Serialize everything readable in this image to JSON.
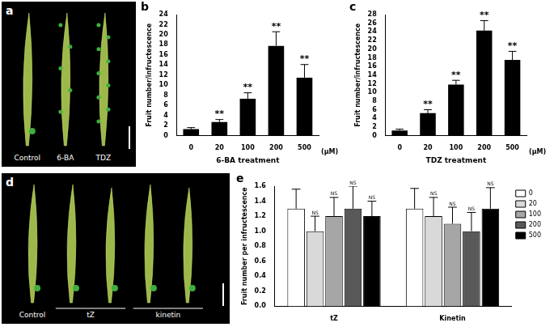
{
  "photos": [
    {
      "panel": "a",
      "labels": [
        "Control",
        "6-BA",
        "TDZ"
      ]
    },
    {
      "panel": "d",
      "labels": [
        "Control",
        "tZ",
        "kinetin"
      ]
    }
  ],
  "chart_data": [
    {
      "panel": "b",
      "type": "bar",
      "x_label": "6-BA treatment",
      "unit_label": "(μM)",
      "y_label": "Fruit number/infructescence",
      "categories": [
        "0",
        "20",
        "100",
        "200",
        "500"
      ],
      "values": [
        1.3,
        2.7,
        7.3,
        17.8,
        11.5
      ],
      "errors": [
        0.3,
        0.5,
        1.2,
        2.8,
        2.6
      ],
      "significance": [
        null,
        "**",
        "**",
        "**",
        "**"
      ],
      "color": "#000000",
      "ylim": [
        0,
        24
      ],
      "yticks": [
        0,
        2,
        4,
        6,
        8,
        10,
        12,
        14,
        16,
        18,
        20,
        22,
        24
      ],
      "grid": false
    },
    {
      "panel": "c",
      "type": "bar",
      "x_label": "TDZ treatment",
      "unit_label": "(μM)",
      "y_label": "Fruit number/infructescence",
      "categories": [
        "0",
        "20",
        "100",
        "200",
        "500"
      ],
      "values": [
        1.2,
        5.2,
        11.8,
        24.3,
        17.5
      ],
      "errors": [
        0.3,
        0.8,
        1.0,
        2.3,
        2.0
      ],
      "significance": [
        null,
        "**",
        "**",
        "**",
        "**"
      ],
      "color": "#000000",
      "ylim": [
        0,
        28
      ],
      "yticks": [
        0,
        2,
        4,
        6,
        8,
        10,
        12,
        14,
        16,
        18,
        20,
        22,
        24,
        26,
        28
      ],
      "grid": false
    },
    {
      "panel": "e",
      "type": "bar",
      "y_label": "Fruit number per infructescence",
      "categories": [
        "tZ",
        "Kinetin"
      ],
      "series": [
        {
          "name": "0",
          "color": "#ffffff",
          "values": [
            1.3,
            1.3
          ],
          "errors": [
            0.26,
            0.27
          ]
        },
        {
          "name": "20",
          "color": "#d9d9d9",
          "values": [
            1.0,
            1.2
          ],
          "errors": [
            0.2,
            0.25
          ],
          "significance": [
            "NS",
            "NS"
          ]
        },
        {
          "name": "100",
          "color": "#a6a6a6",
          "values": [
            1.2,
            1.1
          ],
          "errors": [
            0.25,
            0.22
          ],
          "significance": [
            "NS",
            "NS"
          ]
        },
        {
          "name": "200",
          "color": "#595959",
          "values": [
            1.3,
            1.0
          ],
          "errors": [
            0.3,
            0.25
          ],
          "significance": [
            "NS",
            "NS"
          ]
        },
        {
          "name": "500",
          "color": "#000000",
          "values": [
            1.2,
            1.3
          ],
          "errors": [
            0.2,
            0.28
          ],
          "significance": [
            "NS",
            "NS"
          ]
        }
      ],
      "ylim": [
        0,
        1.6
      ],
      "yticks": [
        {
          "value": 0,
          "label": "0.0"
        },
        {
          "value": 0.2,
          "label": "0.2"
        },
        {
          "value": 0.4,
          "label": "0.4"
        },
        {
          "value": 0.6,
          "label": "0.6"
        },
        {
          "value": 0.8,
          "label": "0.8"
        },
        {
          "value": 1.0,
          "label": "1.0"
        },
        {
          "value": 1.2,
          "label": "1.2"
        },
        {
          "value": 1.4,
          "label": "1.4"
        },
        {
          "value": 1.6,
          "label": "1.6"
        }
      ],
      "legend": "right",
      "grid": false
    }
  ]
}
